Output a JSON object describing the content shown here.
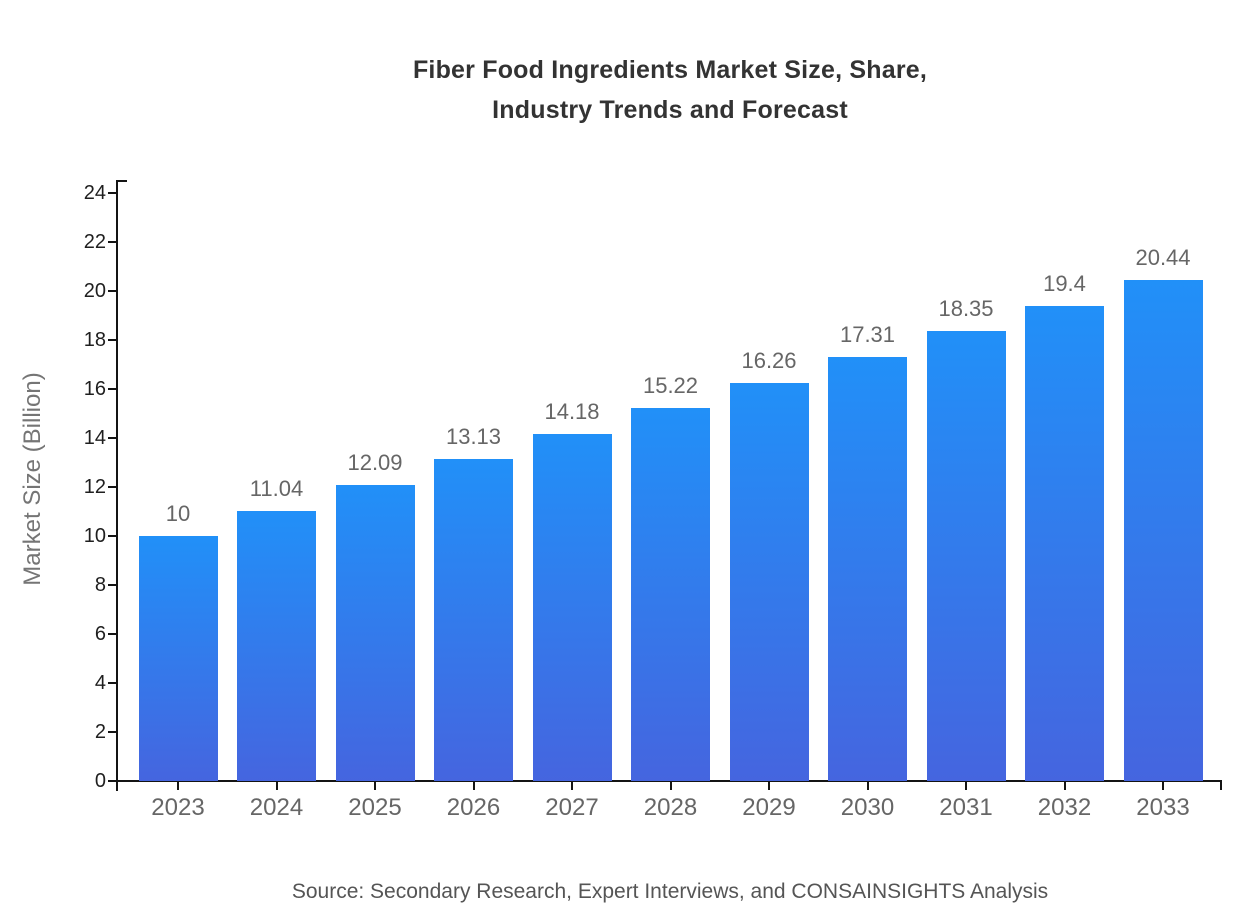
{
  "title": {
    "line1": "Fiber Food Ingredients Market Size, Share,",
    "line2": "Industry Trends and Forecast"
  },
  "source": {
    "text": "Source: Secondary Research, Expert Interviews, and CONSAINSIGHTS Analysis"
  },
  "chart_data": {
    "type": "bar",
    "title": "Fiber Food Ingredients Market Size, Share, Industry Trends and Forecast",
    "categories": [
      "2023",
      "2024",
      "2025",
      "2026",
      "2027",
      "2028",
      "2029",
      "2030",
      "2031",
      "2032",
      "2033"
    ],
    "values": [
      10,
      11.04,
      12.09,
      13.13,
      14.18,
      15.22,
      16.26,
      17.31,
      18.35,
      19.4,
      20.44
    ],
    "value_labels": [
      "10",
      "11.04",
      "12.09",
      "13.13",
      "14.18",
      "15.22",
      "16.26",
      "17.31",
      "18.35",
      "19.4",
      "20.44"
    ],
    "xlabel": "",
    "ylabel": "Market Size (Billion)",
    "ylim": [
      0,
      24
    ],
    "yticks": [
      0,
      2,
      4,
      6,
      8,
      10,
      12,
      14,
      16,
      18,
      20,
      22,
      24
    ],
    "grid": false,
    "legend": "none",
    "colors": {
      "bar_gradient_top": "#2190F8",
      "bar_gradient_bottom": "#4565DF",
      "axis": "#141414",
      "title": "#333333",
      "y_tick_label": "#1f1f1f",
      "x_tick_label": "#666666",
      "value_label": "#666666",
      "ylabel": "#757575",
      "source": "#555555",
      "background": "#ffffff"
    }
  }
}
